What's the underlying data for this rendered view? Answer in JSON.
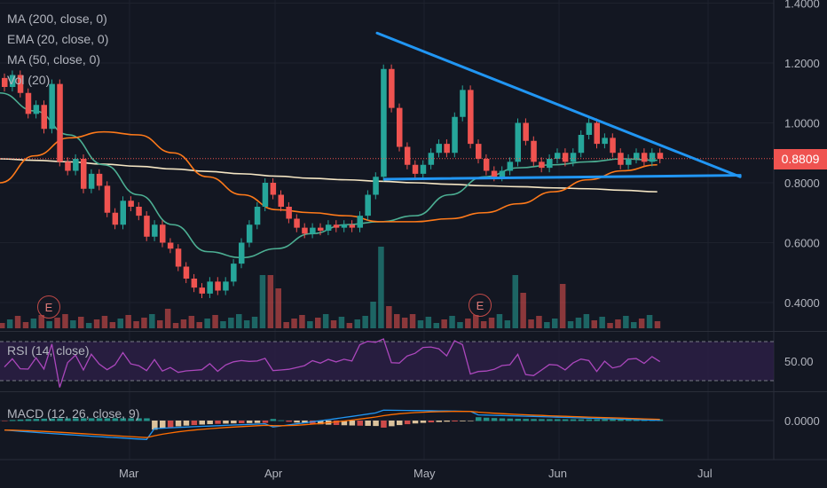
{
  "indicators": {
    "ma200": "MA (200, close, 0)",
    "ema20": "EMA (20, close, 0)",
    "ma50": "MA (50, close, 0)",
    "vol": "Vol (20)",
    "rsi": "RSI (14, close)",
    "macd": "MACD (12, 26, close, 9)"
  },
  "last_price": "0.8809",
  "earnings_markers": [
    {
      "label": "E",
      "month": "Feb"
    },
    {
      "label": "E",
      "month": "May"
    }
  ],
  "colors": {
    "background": "#131722",
    "up": "#26a69a",
    "down": "#ef5350",
    "ma200": "#f5e6c4",
    "ema20": "#4caf93",
    "ma50": "#ff7a1a",
    "trendline": "#2196f3",
    "rsi": "#ab47bc",
    "macd": "#2196f3",
    "signal": "#ff6d00",
    "price_badge": "#ef5350"
  },
  "chart_data": {
    "type": "candlestick",
    "price_axis": {
      "ticks": [
        "1.4000",
        "1.2000",
        "1.0000",
        "0.8000",
        "0.6000",
        "0.4000"
      ],
      "range": [
        0.31,
        1.4
      ]
    },
    "time_axis": {
      "ticks": [
        "Mar",
        "Apr",
        "May",
        "Jun",
        "Jul"
      ]
    },
    "rsi_axis": {
      "ticks": [
        "50.00"
      ],
      "bands": [
        70,
        30
      ]
    },
    "macd_axis": {
      "ticks": [
        "0.0000"
      ]
    },
    "series": [
      {
        "name": "MA (200, close, 0)",
        "values": [
          0.88,
          0.875,
          0.87,
          0.862,
          0.855,
          0.846,
          0.838,
          0.83,
          0.822,
          0.815,
          0.81,
          0.805,
          0.8,
          0.795,
          0.79,
          0.787,
          0.783,
          0.78,
          0.775,
          0.77
        ]
      },
      {
        "name": "EMA (20, close, 0)",
        "values": [
          1.1,
          1.04,
          0.96,
          0.86,
          0.76,
          0.66,
          0.57,
          0.55,
          0.58,
          0.63,
          0.66,
          0.67,
          0.69,
          0.76,
          0.82,
          0.85,
          0.86,
          0.87,
          0.88,
          0.875
        ]
      },
      {
        "name": "MA (50, close, 0)",
        "values": [
          0.8,
          0.89,
          0.95,
          0.97,
          0.96,
          0.9,
          0.82,
          0.76,
          0.71,
          0.7,
          0.69,
          0.67,
          0.67,
          0.68,
          0.7,
          0.73,
          0.77,
          0.81,
          0.84,
          0.86
        ]
      }
    ],
    "trendlines": [
      {
        "name": "descending resistance",
        "from": [
          0.456,
          1.3
        ],
        "to": [
          0.895,
          0.82
        ]
      },
      {
        "name": "support",
        "from": [
          0.465,
          0.812
        ],
        "to": [
          0.895,
          0.825
        ]
      }
    ],
    "candles": [
      [
        1.15,
        1.12
      ],
      [
        1.12,
        1.16
      ],
      [
        1.16,
        1.1
      ],
      [
        1.1,
        1.03
      ],
      [
        1.03,
        1.06
      ],
      [
        1.06,
        0.98
      ],
      [
        0.98,
        1.13
      ],
      [
        1.13,
        0.87
      ],
      [
        0.87,
        0.84
      ],
      [
        0.84,
        0.88
      ],
      [
        0.88,
        0.78
      ],
      [
        0.78,
        0.83
      ],
      [
        0.83,
        0.79
      ],
      [
        0.79,
        0.7
      ],
      [
        0.7,
        0.66
      ],
      [
        0.66,
        0.74
      ],
      [
        0.74,
        0.72
      ],
      [
        0.72,
        0.69
      ],
      [
        0.69,
        0.62
      ],
      [
        0.62,
        0.66
      ],
      [
        0.66,
        0.6
      ],
      [
        0.6,
        0.58
      ],
      [
        0.58,
        0.52
      ],
      [
        0.52,
        0.48
      ],
      [
        0.48,
        0.45
      ],
      [
        0.45,
        0.43
      ],
      [
        0.43,
        0.47
      ],
      [
        0.47,
        0.44
      ],
      [
        0.44,
        0.47
      ],
      [
        0.47,
        0.53
      ],
      [
        0.53,
        0.6
      ],
      [
        0.6,
        0.66
      ],
      [
        0.66,
        0.72
      ],
      [
        0.72,
        0.8
      ],
      [
        0.8,
        0.76
      ],
      [
        0.76,
        0.72
      ],
      [
        0.72,
        0.68
      ],
      [
        0.68,
        0.65
      ],
      [
        0.65,
        0.63
      ],
      [
        0.63,
        0.65
      ],
      [
        0.65,
        0.64
      ],
      [
        0.64,
        0.66
      ],
      [
        0.66,
        0.65
      ],
      [
        0.65,
        0.66
      ],
      [
        0.66,
        0.65
      ],
      [
        0.65,
        0.69
      ],
      [
        0.69,
        0.76
      ],
      [
        0.76,
        0.82
      ],
      [
        0.82,
        1.18
      ],
      [
        1.18,
        1.05
      ],
      [
        1.05,
        0.92
      ],
      [
        0.92,
        0.86
      ],
      [
        0.86,
        0.83
      ],
      [
        0.83,
        0.86
      ],
      [
        0.86,
        0.9
      ],
      [
        0.9,
        0.93
      ],
      [
        0.93,
        0.9
      ],
      [
        0.9,
        1.02
      ],
      [
        1.02,
        1.11
      ],
      [
        1.11,
        0.93
      ],
      [
        0.93,
        0.88
      ],
      [
        0.88,
        0.84
      ],
      [
        0.84,
        0.82
      ],
      [
        0.82,
        0.84
      ],
      [
        0.84,
        0.87
      ],
      [
        0.87,
        1.0
      ],
      [
        1.0,
        0.94
      ],
      [
        0.94,
        0.87
      ],
      [
        0.87,
        0.85
      ],
      [
        0.85,
        0.88
      ],
      [
        0.88,
        0.9
      ],
      [
        0.9,
        0.87
      ],
      [
        0.87,
        0.9
      ],
      [
        0.9,
        0.96
      ],
      [
        0.96,
        1.0
      ],
      [
        1.0,
        0.93
      ],
      [
        0.93,
        0.95
      ],
      [
        0.95,
        0.9
      ],
      [
        0.9,
        0.86
      ],
      [
        0.86,
        0.88
      ],
      [
        0.88,
        0.9
      ],
      [
        0.9,
        0.87
      ],
      [
        0.87,
        0.9
      ],
      [
        0.9,
        0.88
      ]
    ]
  }
}
